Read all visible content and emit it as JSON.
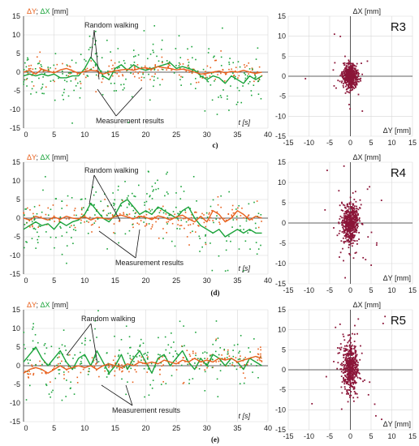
{
  "colors": {
    "dy": "#e8601c",
    "dx": "#1aa33a",
    "scatter": "#8b1538",
    "text": "#222222"
  },
  "legend": {
    "dy": "ΔY",
    "sep": "; ",
    "dx": "ΔX",
    "unit": " [mm]"
  },
  "annotations": {
    "random": "Random walking",
    "meas": "Measurement results"
  },
  "time_axis_label": "t [s]",
  "scatter_axes": {
    "x": "ΔY [mm]",
    "y": "ΔX [mm]"
  },
  "chart_data": [
    {
      "panel": "c)",
      "receiver": "R3",
      "type": "line",
      "xlabel": "t [s]",
      "ylabel": "ΔY; ΔX [mm]",
      "xlim": [
        0,
        40
      ],
      "ylim": [
        -15,
        15
      ],
      "xticks": [
        0,
        5,
        10,
        15,
        20,
        25,
        30,
        35,
        40
      ],
      "yticks": [
        -15,
        -10,
        -5,
        0,
        5,
        10,
        15
      ],
      "grid": true,
      "series": [
        {
          "name": "ΔY",
          "style": "line",
          "x": [
            0,
            1,
            2,
            3,
            4,
            5,
            6,
            7,
            8,
            9,
            10,
            11,
            12,
            13,
            14,
            15,
            16,
            17,
            18,
            19,
            20,
            21,
            22,
            23,
            24,
            25,
            26,
            27,
            28,
            29,
            30,
            31,
            32,
            33,
            34,
            35,
            36,
            37,
            38,
            39
          ],
          "values": [
            0,
            0.5,
            -0.5,
            0.8,
            0.3,
            -0.2,
            0.6,
            1,
            0.4,
            -0.3,
            0.2,
            0.5,
            0.3,
            -0.5,
            0,
            0.4,
            0.6,
            0.8,
            0.5,
            1,
            1.2,
            0.8,
            1.5,
            1.2,
            1,
            0.6,
            0.8,
            0.5,
            0,
            -0.5,
            -0.3,
            0,
            0.3,
            -0.2,
            0.2,
            0,
            0.5,
            0,
            -0.3,
            0
          ]
        },
        {
          "name": "ΔX",
          "style": "line",
          "x": [
            0,
            1,
            2,
            3,
            4,
            5,
            6,
            7,
            8,
            9,
            10,
            11,
            12,
            13,
            14,
            15,
            16,
            17,
            18,
            19,
            20,
            21,
            22,
            23,
            24,
            25,
            26,
            27,
            28,
            29,
            30,
            31,
            32,
            33,
            34,
            35,
            36,
            37,
            38,
            39
          ],
          "values": [
            -1,
            -0.5,
            -1,
            -0.5,
            -1,
            -0.5,
            -1.5,
            -1.5,
            -1,
            -1,
            1,
            4,
            2,
            -1,
            -2,
            1,
            2,
            0.5,
            2,
            1,
            0.5,
            1,
            1.5,
            2,
            2.5,
            1,
            1.5,
            1,
            0.5,
            -1,
            -2,
            -1,
            -1.5,
            -3,
            -1,
            -2,
            -3,
            -1,
            -2,
            -1
          ]
        },
        {
          "name": "ΔY",
          "style": "points",
          "n": 180,
          "noise": 1.4,
          "seed": 11
        },
        {
          "name": "ΔX",
          "style": "points",
          "n": 240,
          "noise": 3.6,
          "seed": 12
        }
      ]
    },
    {
      "panel": "c)",
      "receiver": "R3",
      "type": "scatter",
      "xlabel": "ΔY [mm]",
      "ylabel": "ΔX [mm]",
      "xlim": [
        -15,
        15
      ],
      "ylim": [
        -15,
        15
      ],
      "xticks": [
        -15,
        -10,
        -5,
        0,
        5,
        10,
        15
      ],
      "yticks": [
        -15,
        -10,
        -5,
        0,
        5,
        10,
        15
      ],
      "points": {
        "n": 520,
        "center": [
          0,
          0
        ],
        "sd": [
          0.9,
          1.5
        ],
        "seed": 31
      }
    },
    {
      "panel": "(d)",
      "receiver": "R4",
      "type": "line",
      "xlabel": "t [s]",
      "ylabel": "ΔY; ΔX [mm]",
      "xlim": [
        0,
        40
      ],
      "ylim": [
        -15,
        15
      ],
      "xticks": [
        0,
        5,
        10,
        15,
        20,
        25,
        30,
        35,
        40
      ],
      "yticks": [
        -15,
        -10,
        -5,
        0,
        5,
        10,
        15
      ],
      "grid": true,
      "series": [
        {
          "name": "ΔY",
          "style": "line",
          "x": [
            0,
            1,
            2,
            3,
            4,
            5,
            6,
            7,
            8,
            9,
            10,
            11,
            12,
            13,
            14,
            15,
            16,
            17,
            18,
            19,
            20,
            21,
            22,
            23,
            24,
            25,
            26,
            27,
            28,
            29,
            30,
            31,
            32,
            33,
            34,
            35,
            36,
            37,
            38,
            39
          ],
          "values": [
            0,
            -0.5,
            0.5,
            0,
            -0.5,
            0.3,
            -0.3,
            0.5,
            0,
            -0.2,
            0.4,
            -0.5,
            0.2,
            0,
            -0.3,
            0.5,
            0.8,
            0.3,
            -0.2,
            0.5,
            0.2,
            -0.4,
            0.6,
            0.2,
            -0.5,
            0.3,
            0.8,
            -0.2,
            -1,
            0.5,
            -1,
            2,
            1,
            -1,
            0,
            2,
            1,
            -0.5,
            0.5,
            0
          ]
        },
        {
          "name": "ΔX",
          "style": "line",
          "x": [
            0,
            1,
            2,
            3,
            4,
            5,
            6,
            7,
            8,
            9,
            10,
            11,
            12,
            13,
            14,
            15,
            16,
            17,
            18,
            19,
            20,
            21,
            22,
            23,
            24,
            25,
            26,
            27,
            28,
            29,
            30,
            31,
            32,
            33,
            34,
            35,
            36,
            37,
            38,
            39
          ],
          "values": [
            -3,
            -2,
            -1,
            -2,
            -1.5,
            -3,
            -1,
            -2,
            -1,
            -0.5,
            1,
            4,
            2,
            0,
            -1,
            1,
            4,
            5,
            3,
            1,
            2,
            1,
            3,
            2,
            1,
            0,
            2,
            3,
            0,
            -2,
            -3,
            -4,
            -3,
            -5,
            -4,
            -3,
            -4,
            -3,
            -4,
            -4
          ]
        },
        {
          "name": "ΔY",
          "style": "points",
          "n": 180,
          "noise": 1.6,
          "seed": 21
        },
        {
          "name": "ΔX",
          "style": "points",
          "n": 240,
          "noise": 4.0,
          "seed": 22
        }
      ]
    },
    {
      "panel": "(d)",
      "receiver": "R4",
      "type": "scatter",
      "xlabel": "ΔY [mm]",
      "ylabel": "ΔX [mm]",
      "xlim": [
        -15,
        15
      ],
      "ylim": [
        -15,
        15
      ],
      "xticks": [
        -15,
        -10,
        -5,
        0,
        5,
        10,
        15
      ],
      "yticks": [
        -15,
        -10,
        -5,
        0,
        5,
        10,
        15
      ],
      "points": {
        "n": 520,
        "center": [
          0,
          0
        ],
        "sd": [
          1.1,
          2.6
        ],
        "seed": 41
      }
    },
    {
      "panel": "(e)",
      "receiver": "R5",
      "type": "line",
      "xlabel": "t [s]",
      "ylabel": "ΔY; ΔX [mm]",
      "xlim": [
        0,
        40
      ],
      "ylim": [
        -15,
        15
      ],
      "xticks": [
        0,
        5,
        10,
        15,
        20,
        25,
        30,
        35,
        40
      ],
      "yticks": [
        -15,
        -10,
        -5,
        0,
        5,
        10,
        15
      ],
      "grid": true,
      "series": [
        {
          "name": "ΔY",
          "style": "line",
          "x": [
            0,
            1,
            2,
            3,
            4,
            5,
            6,
            7,
            8,
            9,
            10,
            11,
            12,
            13,
            14,
            15,
            16,
            17,
            18,
            19,
            20,
            21,
            22,
            23,
            24,
            25,
            26,
            27,
            28,
            29,
            30,
            31,
            32,
            33,
            34,
            35,
            36,
            37,
            38,
            39
          ],
          "values": [
            -2,
            -1,
            -0.5,
            -1,
            -2,
            -1,
            0,
            -1,
            -0.5,
            0,
            -0.5,
            0,
            -1,
            0,
            0.5,
            0,
            -0.5,
            0.5,
            0,
            1,
            0.5,
            1,
            0.5,
            1.5,
            1,
            0.5,
            1.5,
            1,
            2,
            1,
            1.5,
            1,
            2,
            1.5,
            2,
            1,
            1.5,
            2,
            2.5,
            2
          ]
        },
        {
          "name": "ΔX",
          "style": "line",
          "x": [
            0,
            1,
            2,
            3,
            4,
            5,
            6,
            7,
            8,
            9,
            10,
            11,
            12,
            13,
            14,
            15,
            16,
            17,
            18,
            19,
            20,
            21,
            22,
            23,
            24,
            25,
            26,
            27,
            28,
            29,
            30,
            31,
            32,
            33,
            34,
            35,
            36,
            37,
            38,
            39
          ],
          "values": [
            1,
            3,
            5,
            2,
            0,
            2,
            4,
            1,
            -1,
            2,
            3,
            0,
            4,
            1,
            -2,
            0,
            3,
            -1,
            2,
            4,
            1,
            -2,
            2,
            3,
            0,
            2,
            4,
            1,
            -1,
            2,
            0,
            3,
            2,
            0,
            2,
            1,
            -1,
            2,
            1,
            0
          ]
        },
        {
          "name": "ΔY",
          "style": "points",
          "n": 180,
          "noise": 1.4,
          "seed": 51
        },
        {
          "name": "ΔX",
          "style": "points",
          "n": 240,
          "noise": 4.0,
          "seed": 52
        }
      ]
    },
    {
      "panel": "(e)",
      "receiver": "R5",
      "type": "scatter",
      "xlabel": "ΔY [mm]",
      "ylabel": "ΔX [mm]",
      "xlim": [
        -15,
        15
      ],
      "ylim": [
        -15,
        15
      ],
      "xticks": [
        -15,
        -10,
        -5,
        0,
        5,
        10,
        15
      ],
      "yticks": [
        -15,
        -10,
        -5,
        0,
        5,
        10,
        15
      ],
      "points": {
        "n": 520,
        "center": [
          0,
          0.5
        ],
        "sd": [
          1.0,
          3.2
        ],
        "seed": 61
      }
    }
  ]
}
